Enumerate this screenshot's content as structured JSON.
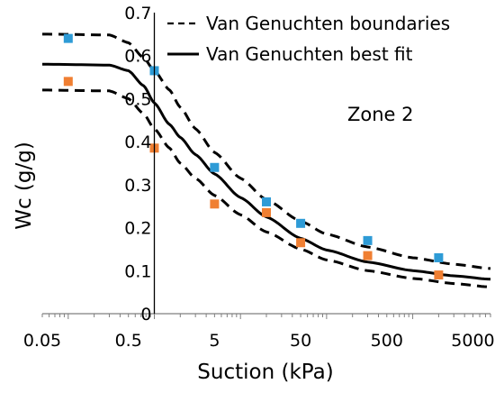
{
  "chart_data": {
    "type": "scatter",
    "xlabel": "Suction (kPa)",
    "ylabel": "Wc (g/g)",
    "x_scale": "log",
    "xlim": [
      0.05,
      8000
    ],
    "ylim": [
      0,
      0.7
    ],
    "x_ticks": [
      {
        "value": 0.05,
        "label": "0.05"
      },
      {
        "value": 0.5,
        "label": "0.5"
      },
      {
        "value": 5,
        "label": "5"
      },
      {
        "value": 50,
        "label": "50"
      },
      {
        "value": 500,
        "label": "500"
      },
      {
        "value": 5000,
        "label": "5000"
      }
    ],
    "y_ticks": [
      {
        "value": 0,
        "label": "0"
      },
      {
        "value": 0.1,
        "label": "0.1"
      },
      {
        "value": 0.2,
        "label": "0.2"
      },
      {
        "value": 0.3,
        "label": "0.3"
      },
      {
        "value": 0.4,
        "label": "0.4"
      },
      {
        "value": 0.5,
        "label": "0.5"
      },
      {
        "value": 0.6,
        "label": "0.6"
      },
      {
        "value": 0.7,
        "label": "0.7"
      }
    ],
    "y_axis_at_x": 1,
    "grid": false,
    "legend_position": "top-right",
    "annotation": "Zone 2",
    "legend": [
      {
        "label": "Van Genuchten boundaries",
        "style": "dashed"
      },
      {
        "label": "Van Genuchten best fit",
        "style": "solid"
      }
    ],
    "marker_series": [
      {
        "color": "#2e9bd6",
        "points": [
          {
            "x": 0.1,
            "y": 0.64
          },
          {
            "x": 1,
            "y": 0.565
          },
          {
            "x": 5,
            "y": 0.34
          },
          {
            "x": 20,
            "y": 0.26
          },
          {
            "x": 50,
            "y": 0.21
          },
          {
            "x": 300,
            "y": 0.17
          },
          {
            "x": 2000,
            "y": 0.13
          }
        ]
      },
      {
        "color": "#f07f32",
        "points": [
          {
            "x": 0.1,
            "y": 0.54
          },
          {
            "x": 1,
            "y": 0.385
          },
          {
            "x": 5,
            "y": 0.255
          },
          {
            "x": 20,
            "y": 0.235
          },
          {
            "x": 50,
            "y": 0.165
          },
          {
            "x": 300,
            "y": 0.135
          },
          {
            "x": 2000,
            "y": 0.09
          }
        ]
      }
    ],
    "curves": [
      {
        "role": "upper-boundary",
        "style": "dashed",
        "points": [
          [
            0.05,
            0.65
          ],
          [
            0.3,
            0.648
          ],
          [
            0.5,
            0.63
          ],
          [
            0.75,
            0.595
          ],
          [
            1,
            0.565
          ],
          [
            1.5,
            0.52
          ],
          [
            2,
            0.48
          ],
          [
            3,
            0.43
          ],
          [
            5,
            0.375
          ],
          [
            10,
            0.315
          ],
          [
            20,
            0.265
          ],
          [
            50,
            0.215
          ],
          [
            100,
            0.185
          ],
          [
            300,
            0.155
          ],
          [
            1000,
            0.13
          ],
          [
            3000,
            0.115
          ],
          [
            8000,
            0.105
          ]
        ]
      },
      {
        "role": "best-fit",
        "style": "solid",
        "points": [
          [
            0.05,
            0.58
          ],
          [
            0.3,
            0.578
          ],
          [
            0.5,
            0.565
          ],
          [
            0.75,
            0.53
          ],
          [
            1,
            0.49
          ],
          [
            1.5,
            0.44
          ],
          [
            2,
            0.41
          ],
          [
            3,
            0.37
          ],
          [
            5,
            0.325
          ],
          [
            10,
            0.27
          ],
          [
            20,
            0.225
          ],
          [
            50,
            0.175
          ],
          [
            100,
            0.148
          ],
          [
            300,
            0.12
          ],
          [
            1000,
            0.1
          ],
          [
            3000,
            0.088
          ],
          [
            8000,
            0.08
          ]
        ]
      },
      {
        "role": "lower-boundary",
        "style": "dashed",
        "points": [
          [
            0.05,
            0.52
          ],
          [
            0.3,
            0.518
          ],
          [
            0.5,
            0.5
          ],
          [
            0.75,
            0.465
          ],
          [
            1,
            0.43
          ],
          [
            1.5,
            0.385
          ],
          [
            2,
            0.35
          ],
          [
            3,
            0.315
          ],
          [
            5,
            0.275
          ],
          [
            10,
            0.23
          ],
          [
            20,
            0.19
          ],
          [
            50,
            0.15
          ],
          [
            100,
            0.125
          ],
          [
            300,
            0.1
          ],
          [
            1000,
            0.082
          ],
          [
            3000,
            0.07
          ],
          [
            8000,
            0.062
          ]
        ]
      }
    ]
  }
}
